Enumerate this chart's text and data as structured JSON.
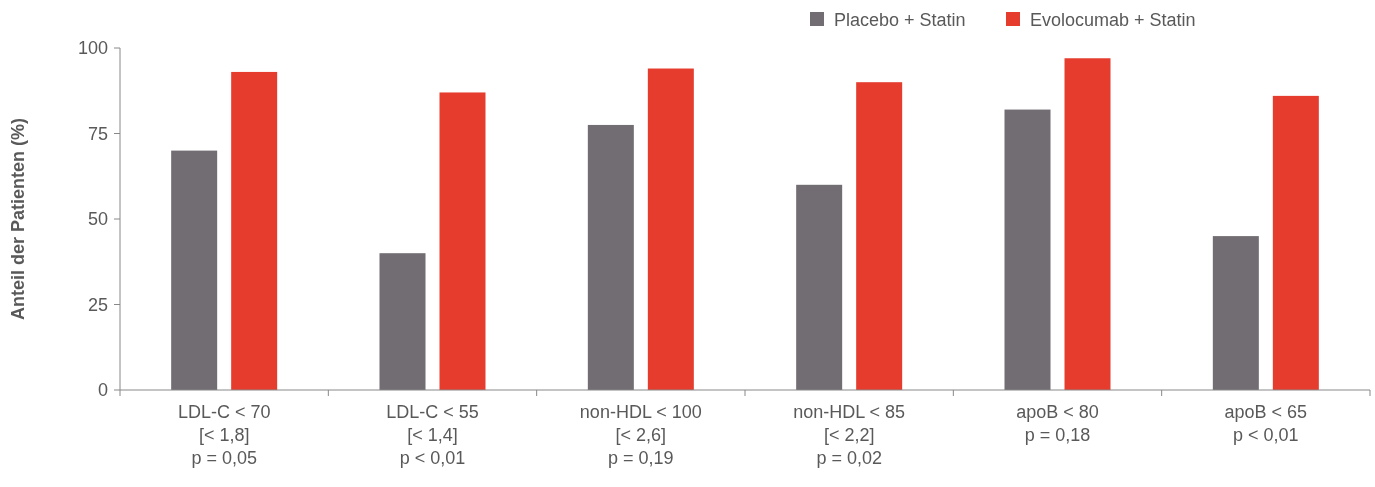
{
  "chart_data": {
    "type": "bar",
    "ylabel": "Anteil der Patienten (%)",
    "categories": [
      "LDL-C < 70\n[< 1,8]\np = 0,05",
      "LDL-C < 55\n[< 1,4]\np < 0,01",
      "non-HDL < 100\n[< 2,6]\np = 0,19",
      "non-HDL < 85\n[< 2,2]\np = 0,02",
      "apoB < 80\np = 0,18",
      "apoB < 65\np < 0,01"
    ],
    "series": [
      {
        "name": "Placebo + Statin",
        "color": "#726d72",
        "values": [
          70,
          40,
          77.5,
          60,
          82,
          45
        ]
      },
      {
        "name": "Evolocumab + Statin",
        "color": "#e53c2e",
        "values": [
          93,
          87,
          94,
          90,
          97,
          86
        ]
      }
    ],
    "ylim": [
      0,
      100
    ],
    "yticks": [
      0,
      25,
      50,
      75,
      100
    ],
    "grid": false,
    "legend": "top right"
  }
}
